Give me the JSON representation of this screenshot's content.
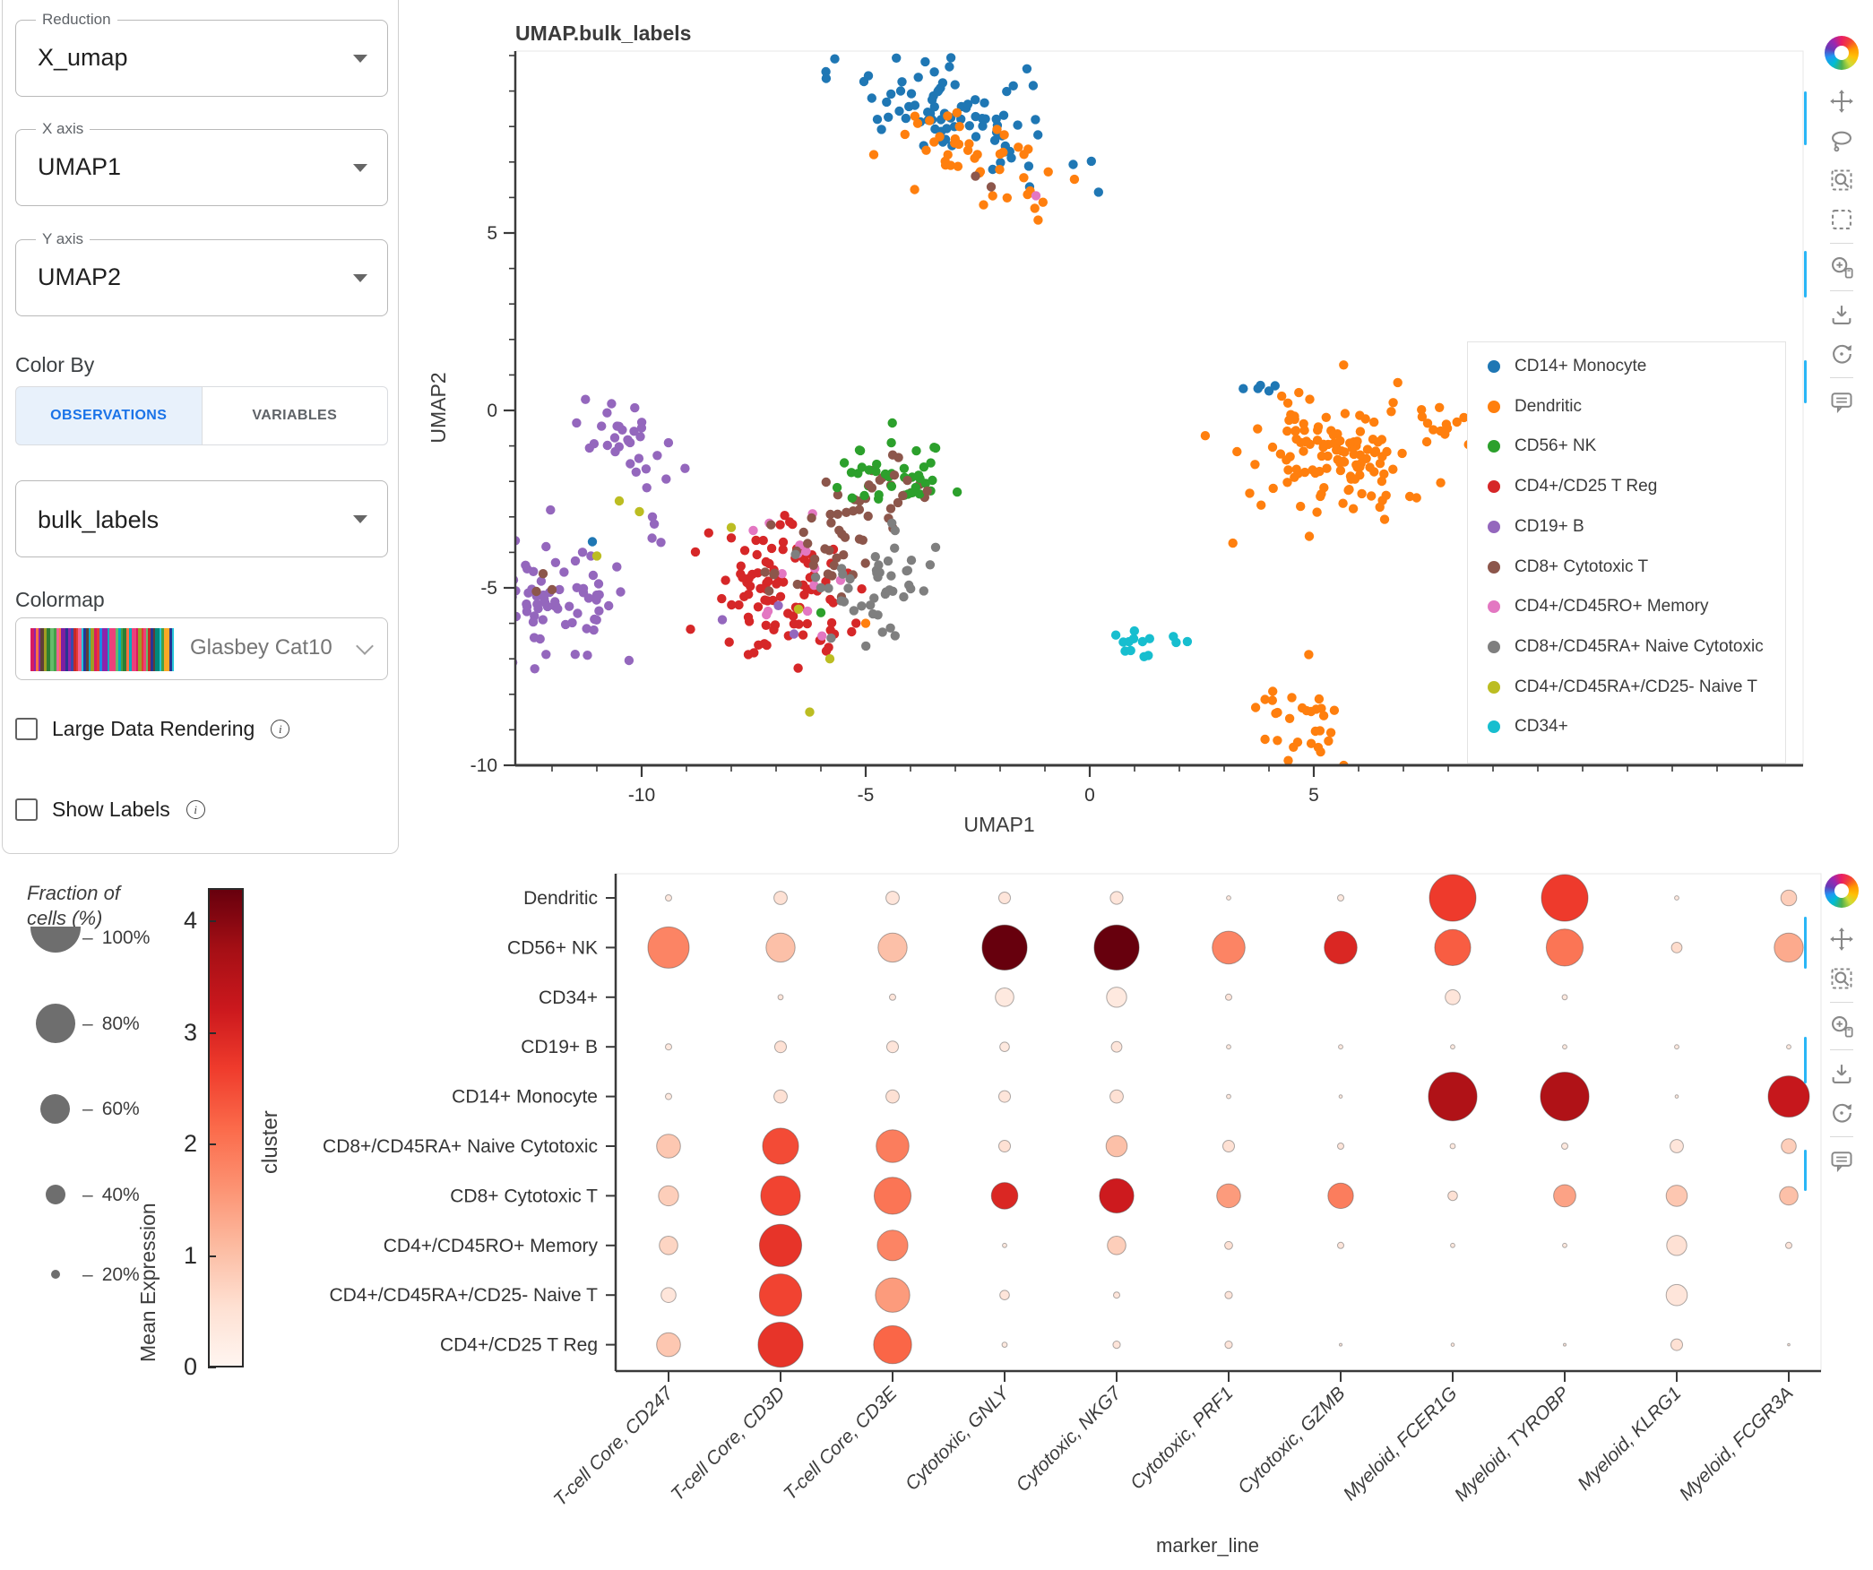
{
  "sidebar": {
    "reduction": {
      "label": "Reduction",
      "value": "X_umap"
    },
    "x_axis": {
      "label": "X axis",
      "value": "UMAP1"
    },
    "y_axis": {
      "label": "Y axis",
      "value": "UMAP2"
    },
    "color_by": {
      "label": "Color By",
      "tabs": [
        {
          "label": "OBSERVATIONS",
          "active": true
        },
        {
          "label": "VARIABLES",
          "active": false
        }
      ]
    },
    "obs_field": {
      "value": "bulk_labels"
    },
    "colormap": {
      "label": "Colormap",
      "value": "Glasbey Cat10"
    },
    "checkboxes": [
      {
        "label": "Large Data Rendering",
        "checked": false
      },
      {
        "label": "Show Labels",
        "checked": false
      }
    ]
  },
  "toolbars": {
    "umap": {
      "icons": [
        "logo",
        "pan",
        "lasso",
        "zoom-box",
        "box-select",
        "divider",
        "zoom-in",
        "divider",
        "download",
        "reset",
        "divider",
        "comment"
      ]
    },
    "dotplot": {
      "icons": [
        "logo",
        "pan",
        "zoom-box",
        "divider",
        "zoom-in",
        "divider",
        "download",
        "reset",
        "divider",
        "comment"
      ]
    }
  },
  "colors": {
    "accent_blue": "#29b6f6",
    "tab_active_bg": "#e8f1fb",
    "tab_active_text": "#1a73e8",
    "axis": "#3a3a3a"
  },
  "chart_data": [
    {
      "type": "scatter",
      "title": "UMAP.bulk_labels",
      "xlabel": "UMAP1",
      "ylabel": "UMAP2",
      "x_ticks": [
        -10,
        -5,
        0,
        5
      ],
      "y_ticks": [
        5,
        0,
        -5,
        -10
      ],
      "x_range": [
        -12.8,
        15.9
      ],
      "y_range": [
        -10.1,
        10.1
      ],
      "legend_position": "right",
      "grid": false,
      "classes": [
        {
          "name": "CD14+ Monocyte",
          "color": "#1f77b4"
        },
        {
          "name": "Dendritic",
          "color": "#ff7f0e"
        },
        {
          "name": "CD56+ NK",
          "color": "#2ca02c"
        },
        {
          "name": "CD4+/CD25 T Reg",
          "color": "#d62728"
        },
        {
          "name": "CD19+ B",
          "color": "#9467bd"
        },
        {
          "name": "CD8+ Cytotoxic T",
          "color": "#8c564b"
        },
        {
          "name": "CD4+/CD45RO+ Memory",
          "color": "#e377c2"
        },
        {
          "name": "CD8+/CD45RA+ Naive Cytotoxic",
          "color": "#7f7f7f"
        },
        {
          "name": "CD4+/CD45RA+/CD25- Naive T",
          "color": "#bcbd22"
        },
        {
          "name": "CD34+",
          "color": "#17becf"
        }
      ],
      "clusters": [
        {
          "class": "CD14+ Monocyte",
          "n": 85,
          "cx": -2.9,
          "cy": 8.3,
          "sx": 1.05,
          "sy": 0.75,
          "rho": -0.55
        },
        {
          "class": "Dendritic",
          "n": 45,
          "cx": -2.4,
          "cy": 7.0,
          "sx": 1.0,
          "sy": 0.7,
          "rho": -0.5
        },
        {
          "class": "Dendritic",
          "n": 128,
          "cx": 5.3,
          "cy": -1.3,
          "sx": 0.95,
          "sy": 0.9,
          "rho": 0
        },
        {
          "class": "CD14+ Monocyte",
          "n": 5,
          "cx": 3.9,
          "cy": 0.55,
          "sx": 0.3,
          "sy": 0.15,
          "rho": 0
        },
        {
          "class": "Dendritic",
          "n": 9,
          "cx": 7.8,
          "cy": -0.35,
          "sx": 0.33,
          "sy": 0.28,
          "rho": 0
        },
        {
          "class": "Dendritic",
          "n": 30,
          "cx": 4.75,
          "cy": -8.6,
          "sx": 0.5,
          "sy": 0.7,
          "rho": 0
        },
        {
          "class": "CD34+",
          "n": 14,
          "cx": 1.2,
          "cy": -6.45,
          "sx": 0.5,
          "sy": 0.28,
          "rho": -0.35
        },
        {
          "class": "CD19+ B",
          "n": 30,
          "cx": -10.45,
          "cy": -0.7,
          "sx": 0.55,
          "sy": 0.5,
          "rho": -0.55
        },
        {
          "class": "CD19+ B",
          "n": 5,
          "cx": -9.65,
          "cy": -3.1,
          "sx": 0.12,
          "sy": 0.75,
          "rho": 0
        },
        {
          "class": "CD19+ B",
          "n": 75,
          "cx": -12.0,
          "cy": -5.2,
          "sx": 0.8,
          "sy": 0.85,
          "rho": -0.1
        },
        {
          "class": "CD4+/CD25 T Reg",
          "n": 95,
          "cx": -6.9,
          "cy": -4.9,
          "sx": 0.9,
          "sy": 1.05,
          "rho": -0.15
        },
        {
          "class": "CD4+/CD45RO+ Memory",
          "n": 14,
          "cx": -6.7,
          "cy": -4.4,
          "sx": 1.0,
          "sy": 1.1,
          "rho": 0
        },
        {
          "class": "CD8+ Cytotoxic T",
          "n": 52,
          "cx": -5.45,
          "cy": -3.2,
          "sx": 0.8,
          "sy": 0.95,
          "rho": 0.45
        },
        {
          "class": "CD8+/CD45RA+ Naive Cytotoxic",
          "n": 45,
          "cx": -4.6,
          "cy": -5.0,
          "sx": 0.72,
          "sy": 0.7,
          "rho": 0.1
        },
        {
          "class": "CD56+ NK",
          "n": 40,
          "cx": -4.4,
          "cy": -1.9,
          "sx": 0.72,
          "sy": 0.55,
          "rho": 0.25
        },
        {
          "class": "CD8+ Cytotoxic T",
          "n": 6,
          "cx": -4.5,
          "cy": -2.1,
          "sx": 0.4,
          "sy": 0.3,
          "rho": 0
        }
      ],
      "singles": [
        {
          "class": "CD4+/CD45RO+ Memory",
          "x": -1.2,
          "y": 6.05
        },
        {
          "class": "CD8+ Cytotoxic T",
          "x": -2.55,
          "y": 6.6
        },
        {
          "class": "CD8+ Cytotoxic T",
          "x": -2.2,
          "y": 6.3
        },
        {
          "class": "CD14+ Monocyte",
          "x": -11.1,
          "y": -3.7
        },
        {
          "class": "CD4+/CD45RA+/CD25- Naive T",
          "x": -11.0,
          "y": -4.1
        },
        {
          "class": "CD4+/CD45RA+/CD25- Naive T",
          "x": -10.5,
          "y": -2.55
        },
        {
          "class": "CD4+/CD45RA+/CD25- Naive T",
          "x": -10.05,
          "y": -2.85
        },
        {
          "class": "CD8+ Cytotoxic T",
          "x": -12.2,
          "y": -4.6
        },
        {
          "class": "CD8+ Cytotoxic T",
          "x": -12.35,
          "y": -5.1
        },
        {
          "class": "CD8+ Cytotoxic T",
          "x": -12.0,
          "y": -5.05
        },
        {
          "class": "CD19+ B",
          "x": -8.2,
          "y": -5.9
        },
        {
          "class": "CD19+ B",
          "x": -6.95,
          "y": -5.5
        },
        {
          "class": "CD19+ B",
          "x": -6.6,
          "y": -6.3
        },
        {
          "class": "CD4+/CD45RA+/CD25- Naive T",
          "x": -8.0,
          "y": -3.3
        },
        {
          "class": "CD4+/CD45RA+/CD25- Naive T",
          "x": -6.5,
          "y": -5.6
        },
        {
          "class": "CD4+/CD45RA+/CD25- Naive T",
          "x": -5.8,
          "y": -7.0
        },
        {
          "class": "CD4+/CD45RA+/CD25- Naive T",
          "x": -6.25,
          "y": -8.5
        },
        {
          "class": "CD56+ NK",
          "x": -6.0,
          "y": -5.7
        },
        {
          "class": "Dendritic",
          "x": -5.0,
          "y": -6.0
        },
        {
          "class": "Dendritic",
          "x": 8.35,
          "y": -0.2
        }
      ]
    },
    {
      "type": "heatmap",
      "subtype": "dotplot",
      "xlabel": "marker_line",
      "ylabel": "cluster",
      "rows": [
        "Dendritic",
        "CD56+ NK",
        "CD34+",
        "CD19+ B",
        "CD14+ Monocyte",
        "CD8+/CD45RA+ Naive Cytotoxic",
        "CD8+ Cytotoxic T",
        "CD4+/CD45RO+ Memory",
        "CD4+/CD45RA+/CD25- Naive T",
        "CD4+/CD25 T Reg"
      ],
      "columns": [
        "T-cell Core, CD247",
        "T-cell Core, CD3D",
        "T-cell Core, CD3E",
        "Cytotoxic, GNLY",
        "Cytotoxic, NKG7",
        "Cytotoxic, PRF1",
        "Cytotoxic, GZMB",
        "Myeloid, FCER1G",
        "Myeloid, TYROBP",
        "Myeloid, KLRG1",
        "Myeloid, FCGR3A"
      ],
      "fraction_pct": [
        [
          12,
          25,
          25,
          22,
          24,
          8,
          12,
          88,
          88,
          8,
          30
        ],
        [
          78,
          55,
          55,
          85,
          85,
          62,
          62,
          68,
          70,
          20,
          55
        ],
        [
          0,
          10,
          12,
          35,
          38,
          12,
          0,
          28,
          10,
          0,
          0
        ],
        [
          12,
          22,
          22,
          18,
          20,
          8,
          8,
          8,
          8,
          8,
          8
        ],
        [
          12,
          25,
          25,
          22,
          25,
          8,
          6,
          92,
          92,
          6,
          78
        ],
        [
          45,
          68,
          62,
          22,
          40,
          22,
          12,
          10,
          12,
          25,
          28
        ],
        [
          38,
          75,
          70,
          50,
          65,
          45,
          48,
          18,
          42,
          40,
          35
        ],
        [
          35,
          80,
          58,
          8,
          35,
          15,
          12,
          8,
          8,
          38,
          12
        ],
        [
          28,
          80,
          65,
          18,
          12,
          14,
          0,
          0,
          0,
          40,
          0
        ],
        [
          45,
          85,
          72,
          10,
          14,
          14,
          5,
          6,
          5,
          22,
          4
        ]
      ],
      "mean_expression": [
        [
          0.3,
          0.5,
          0.4,
          0.4,
          0.4,
          0.3,
          0.3,
          2.7,
          2.7,
          0.3,
          0.8
        ],
        [
          1.8,
          1.0,
          1.0,
          4.3,
          4.3,
          1.8,
          3.0,
          2.3,
          2.0,
          0.6,
          1.3
        ],
        [
          0,
          0.4,
          0.4,
          0.3,
          0.3,
          0.4,
          0,
          0.4,
          0.3,
          0,
          0
        ],
        [
          0.3,
          0.5,
          0.4,
          0.3,
          0.4,
          0.3,
          0.3,
          0.3,
          0.3,
          0.3,
          0.3
        ],
        [
          0.3,
          0.5,
          0.5,
          0.4,
          0.5,
          0.3,
          0.3,
          3.6,
          3.6,
          0.3,
          3.3
        ],
        [
          0.9,
          2.5,
          1.9,
          0.5,
          1.0,
          0.5,
          0.4,
          0.3,
          0.3,
          0.4,
          0.8
        ],
        [
          0.8,
          2.6,
          2.0,
          3.0,
          3.2,
          1.5,
          1.9,
          0.5,
          1.4,
          0.9,
          1.0
        ],
        [
          0.7,
          2.8,
          1.8,
          0.3,
          0.8,
          0.5,
          0.4,
          0.3,
          0.3,
          0.5,
          0.4
        ],
        [
          0.4,
          2.6,
          1.5,
          0.4,
          0.4,
          0.4,
          0,
          0,
          0,
          0.4,
          0
        ],
        [
          0.9,
          2.8,
          2.2,
          0.3,
          0.4,
          0.4,
          0.3,
          0.3,
          0.3,
          0.5,
          0.3
        ]
      ],
      "colorbar": {
        "label": "Mean Expression",
        "ticks": [
          4,
          3,
          2,
          1,
          0
        ],
        "range": [
          0,
          4.3
        ],
        "colormap": "Reds",
        "stops": [
          [
            0,
            "#fff5f0"
          ],
          [
            0.125,
            "#fee0d2"
          ],
          [
            0.25,
            "#fcbba1"
          ],
          [
            0.375,
            "#fc9272"
          ],
          [
            0.5,
            "#fb6a4a"
          ],
          [
            0.625,
            "#ef3b2c"
          ],
          [
            0.75,
            "#cb181d"
          ],
          [
            0.875,
            "#a50f15"
          ],
          [
            1,
            "#67000d"
          ]
        ]
      },
      "size_legend": {
        "title_line1": "Fraction of",
        "title_line2": "cells (%)",
        "ticks": [
          "100%",
          "80%",
          "60%",
          "40%",
          "20%"
        ]
      }
    }
  ]
}
